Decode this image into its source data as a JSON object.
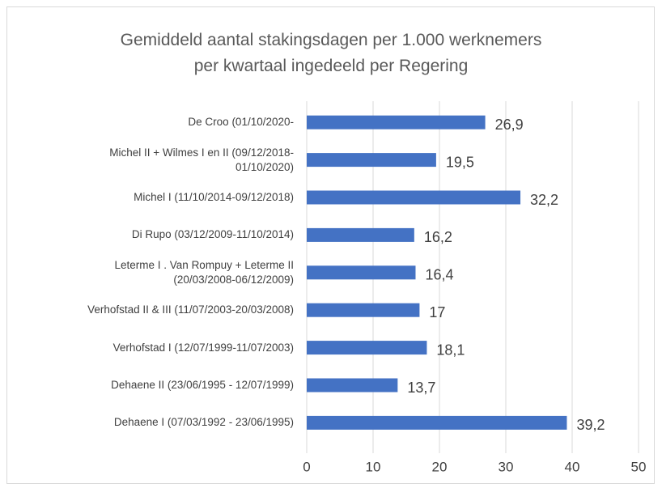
{
  "chart_data": {
    "type": "bar",
    "orientation": "horizontal",
    "title": "Gemiddeld aantal stakingsdagen per 1.000 werknemers\nper kwartaal ingedeeld per Regering",
    "categories": [
      "De Croo (01/10/2020-",
      "Michel II + Wilmes I en II (09/12/2018-\n01/10/2020)",
      "Michel I (11/10/2014-09/12/2018)",
      "Di Rupo (03/12/2009-11/10/2014)",
      "Leterme I . Van Rompuy + Leterme II\n(20/03/2008-06/12/2009)",
      "Verhofstad II & III (11/07/2003-20/03/2008)",
      "Verhofstad I (12/07/1999-11/07/2003)",
      "Dehaene II (23/06/1995 - 12/07/1999)",
      "Dehaene I (07/03/1992 - 23/06/1995)"
    ],
    "values": [
      26.9,
      19.5,
      32.2,
      16.2,
      16.4,
      17,
      18.1,
      13.7,
      39.2
    ],
    "value_labels": [
      "26,9",
      "19,5",
      "32,2",
      "16,2",
      "16,4",
      "17",
      "18,1",
      "13,7",
      "39,2"
    ],
    "color": "#4472c4",
    "xlim": [
      0,
      50
    ],
    "xticks": [
      0,
      10,
      20,
      30,
      40,
      50
    ],
    "grid": true
  }
}
